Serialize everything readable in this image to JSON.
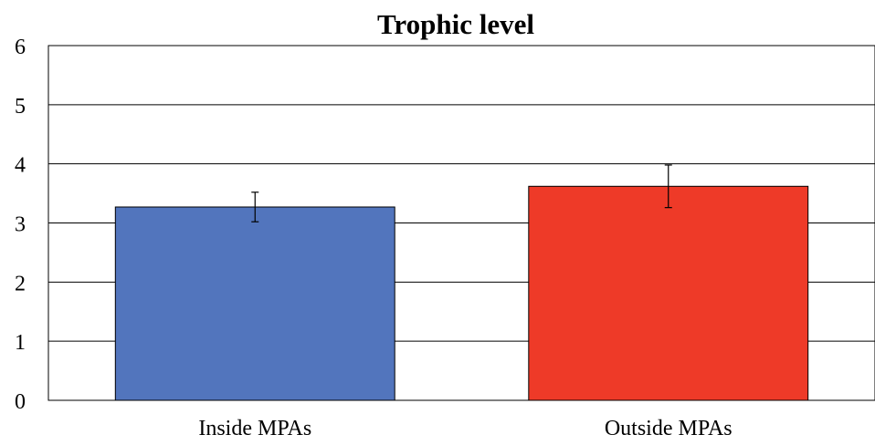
{
  "chart_data": {
    "type": "bar",
    "title": "Trophic level",
    "xlabel": "",
    "ylabel": "",
    "categories": [
      "Inside MPAs",
      "Outside MPAs"
    ],
    "values": [
      3.27,
      3.62
    ],
    "error_low": [
      3.02,
      3.26
    ],
    "error_high": [
      3.52,
      3.98
    ],
    "colors": [
      "#5275bd",
      "#ee3a28"
    ],
    "ylim": [
      0,
      6
    ],
    "yticks": [
      "0",
      "1",
      "2",
      "3",
      "4",
      "5",
      "6"
    ],
    "grid": true,
    "legend": "none"
  }
}
